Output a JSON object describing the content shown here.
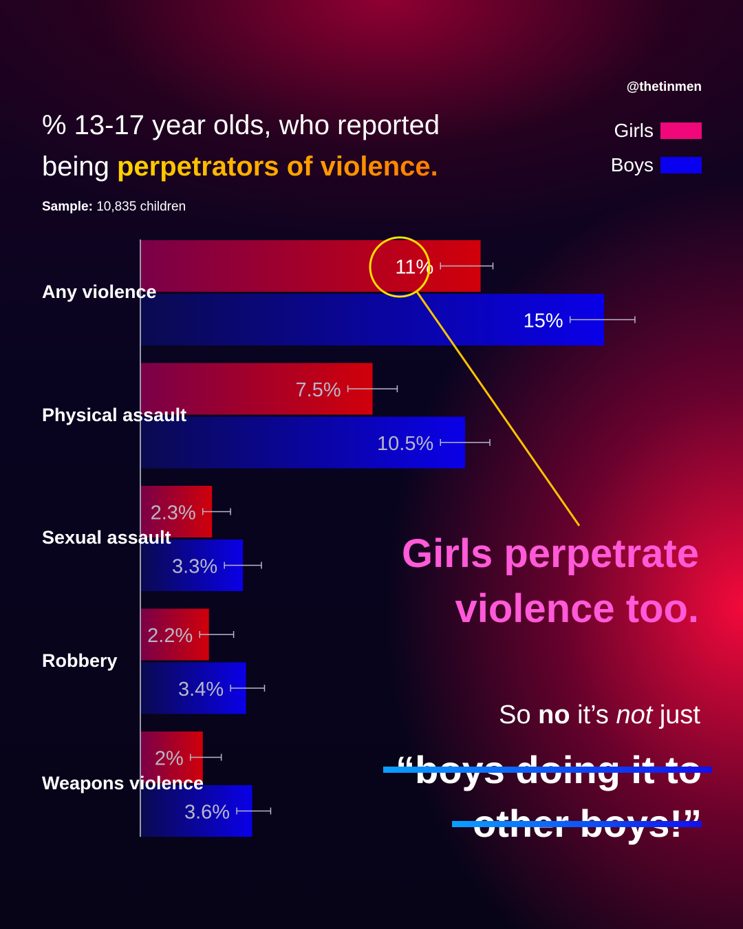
{
  "handle": "@thetinmen",
  "title": {
    "line1": "% 13-17 year olds, who reported",
    "line2_prefix": "being ",
    "line2_highlight": "perpetrators of violence."
  },
  "sample": {
    "label": "Sample:",
    "value": "10,835 children"
  },
  "legend": [
    {
      "label": "Girls",
      "color": "#f0087a"
    },
    {
      "label": "Boys",
      "color": "#0a00f0"
    }
  ],
  "chart_data": {
    "type": "bar",
    "orientation": "horizontal",
    "categories": [
      "Any violence",
      "Physical assault",
      "Sexual assault",
      "Robbery",
      "Weapons violence"
    ],
    "series": [
      {
        "name": "Girls",
        "color": "#f0087a",
        "values": [
          11,
          7.5,
          2.3,
          2.2,
          2
        ],
        "labels": [
          "11%",
          "7.5%",
          "2.3%",
          "2.2%",
          "2%"
        ],
        "error": [
          [
            9.7,
            11.4
          ],
          [
            6.7,
            8.3
          ],
          [
            2.0,
            2.9
          ],
          [
            1.9,
            3.0
          ],
          [
            1.6,
            2.6
          ]
        ]
      },
      {
        "name": "Boys",
        "color": "#0a00f0",
        "values": [
          15,
          10.5,
          3.3,
          3.4,
          3.6
        ],
        "labels": [
          "15%",
          "10.5%",
          "3.3%",
          "3.4%",
          "3.6%"
        ],
        "error": [
          [
            13.9,
            16.0
          ],
          [
            9.7,
            11.3
          ],
          [
            2.7,
            3.9
          ],
          [
            2.9,
            4.0
          ],
          [
            3.1,
            4.2
          ]
        ]
      }
    ],
    "xlim": [
      0,
      16
    ],
    "grid": false,
    "legend_position": "top-right",
    "annotation": {
      "target": "Any violence - Girls",
      "highlight_color": "#ffe000"
    }
  },
  "headline": {
    "line1": "Girls perpetrate",
    "line2": "violence too."
  },
  "subtext": {
    "a": "So ",
    "b": "no",
    "c": " it’s ",
    "d": "not",
    "e": " just"
  },
  "quote": {
    "line1": "“boys doing it to",
    "line2": "other boys!”"
  }
}
